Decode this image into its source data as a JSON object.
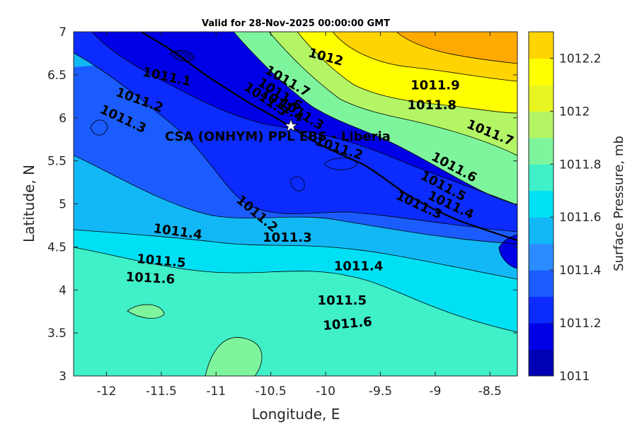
{
  "title": "Valid for 28-Nov-2025 00:00:00 GMT",
  "station_label": "CSA (ONHYM) PPL EBS  - Liberia",
  "station": {
    "lon": -10.3,
    "lat": 5.92
  },
  "colorbar": {
    "label": "Surface Pressure, mb",
    "min": 1011.0,
    "max": 1012.3,
    "step": 0.1,
    "colors": [
      "#0000b4",
      "#0000e6",
      "#0b2bff",
      "#1b5cff",
      "#2a8cff",
      "#12b8f5",
      "#00e0f5",
      "#3ff0c9",
      "#7ef59d",
      "#b4f566",
      "#e8f520",
      "#ffff00",
      "#ffd400",
      "#ffaa00",
      "#ff7f00",
      "#ff4000",
      "#ff0000"
    ],
    "tick_values": [
      1011,
      1011.2,
      1011.4,
      1011.6,
      1011.8,
      1012,
      1012.2
    ],
    "tick_labels": [
      "1011",
      "1011.2",
      "1011.4",
      "1011.6",
      "1011.8",
      "1012",
      "1012.2"
    ]
  },
  "axes": {
    "xlabel": "Longitude, E",
    "ylabel": "Latitude, N",
    "xlim": [
      -12.3,
      -8.25
    ],
    "ylim": [
      3,
      7
    ],
    "x_ticks": [
      -12,
      -11.5,
      -11,
      -10.5,
      -10,
      -9.5,
      -9,
      -8.5
    ],
    "x_tick_labels": [
      "-12",
      "-11.5",
      "-11",
      "-10.5",
      "-10",
      "-9.5",
      "-9",
      "-8.5"
    ],
    "y_ticks": [
      3,
      3.5,
      4,
      4.5,
      5,
      5.5,
      6,
      6.5,
      7
    ],
    "y_tick_labels": [
      "3",
      "3.5",
      "4",
      "4.5",
      "5",
      "5.5",
      "6",
      "6.5",
      "7"
    ]
  },
  "contour_labels": [
    {
      "text": "1012",
      "lon": -10.0,
      "lat": 6.7,
      "angle": 15
    },
    {
      "text": "1011.9",
      "lon": -9.0,
      "lat": 6.37,
      "angle": 0
    },
    {
      "text": "1011.8",
      "lon": -9.03,
      "lat": 6.14,
      "angle": 0
    },
    {
      "text": "1011.7",
      "lon": -8.5,
      "lat": 5.82,
      "angle": 22
    },
    {
      "text": "1011.7",
      "lon": -10.35,
      "lat": 6.42,
      "angle": 30
    },
    {
      "text": "1011.6",
      "lon": -10.42,
      "lat": 6.27,
      "angle": 32
    },
    {
      "text": "1011.5",
      "lon": -10.55,
      "lat": 6.21,
      "angle": 34
    },
    {
      "text": "1011.4",
      "lon": -10.4,
      "lat": 6.14,
      "angle": 35
    },
    {
      "text": "1011.3",
      "lon": -10.22,
      "lat": 6.04,
      "angle": 32
    },
    {
      "text": "1011.1",
      "lon": -11.45,
      "lat": 6.47,
      "angle": 12
    },
    {
      "text": "1011.2",
      "lon": -11.7,
      "lat": 6.2,
      "angle": 20
    },
    {
      "text": "1011.3",
      "lon": -11.85,
      "lat": 5.98,
      "angle": 25
    },
    {
      "text": "1011.2",
      "lon": -9.88,
      "lat": 5.64,
      "angle": 18
    },
    {
      "text": "1011.6",
      "lon": -8.83,
      "lat": 5.42,
      "angle": 28
    },
    {
      "text": "1011.5",
      "lon": -8.93,
      "lat": 5.2,
      "angle": 28
    },
    {
      "text": "1011.4",
      "lon": -8.86,
      "lat": 4.98,
      "angle": 25
    },
    {
      "text": "1011.3",
      "lon": -9.15,
      "lat": 4.98,
      "angle": 25
    },
    {
      "text": "1011.2",
      "lon": -10.63,
      "lat": 4.88,
      "angle": 40
    },
    {
      "text": "1011.3",
      "lon": -10.35,
      "lat": 4.6,
      "angle": 0
    },
    {
      "text": "1011.4",
      "lon": -11.35,
      "lat": 4.67,
      "angle": 8
    },
    {
      "text": "1011.5",
      "lon": -11.5,
      "lat": 4.33,
      "angle": 5
    },
    {
      "text": "1011.6",
      "lon": -11.6,
      "lat": 4.13,
      "angle": 3
    },
    {
      "text": "1011.4",
      "lon": -9.7,
      "lat": 4.27,
      "angle": 0
    },
    {
      "text": "1011.5",
      "lon": -9.85,
      "lat": 3.87,
      "angle": 0
    },
    {
      "text": "1011.6",
      "lon": -9.8,
      "lat": 3.6,
      "angle": -5
    }
  ]
}
